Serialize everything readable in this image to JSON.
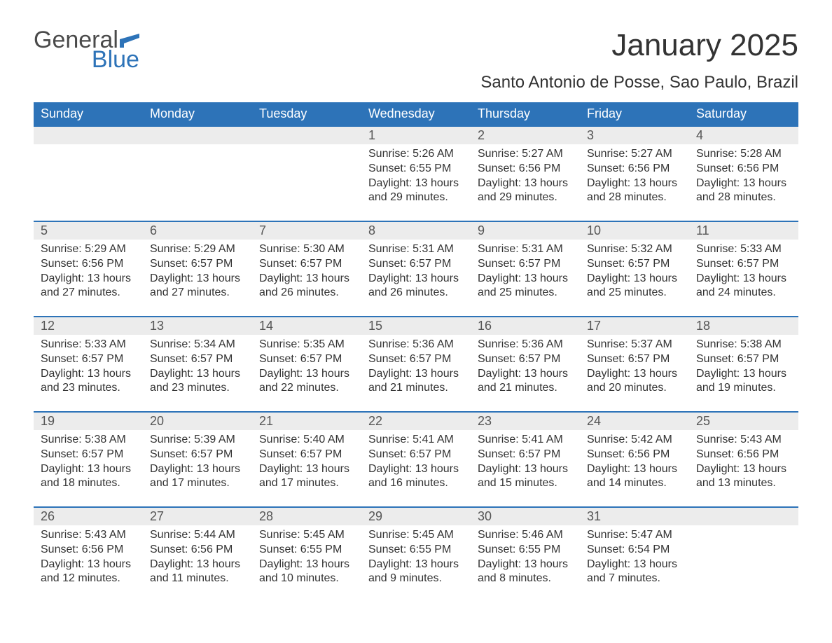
{
  "logo": {
    "text1": "General",
    "text2": "Blue",
    "color_general": "#4a4a4a",
    "color_blue": "#2d73b8",
    "flag_color": "#2d73b8"
  },
  "title": "January 2025",
  "location": "Santo Antonio de Posse, Sao Paulo, Brazil",
  "header_bg": "#2d73b8",
  "header_fg": "#ffffff",
  "daynum_bg": "#ececec",
  "rule_color": "#2d73b8",
  "text_color": "#333333",
  "days_of_week": [
    "Sunday",
    "Monday",
    "Tuesday",
    "Wednesday",
    "Thursday",
    "Friday",
    "Saturday"
  ],
  "weeks": [
    [
      null,
      null,
      null,
      {
        "n": "1",
        "sr": "Sunrise: 5:26 AM",
        "ss": "Sunset: 6:55 PM",
        "dl": "Daylight: 13 hours and 29 minutes."
      },
      {
        "n": "2",
        "sr": "Sunrise: 5:27 AM",
        "ss": "Sunset: 6:56 PM",
        "dl": "Daylight: 13 hours and 29 minutes."
      },
      {
        "n": "3",
        "sr": "Sunrise: 5:27 AM",
        "ss": "Sunset: 6:56 PM",
        "dl": "Daylight: 13 hours and 28 minutes."
      },
      {
        "n": "4",
        "sr": "Sunrise: 5:28 AM",
        "ss": "Sunset: 6:56 PM",
        "dl": "Daylight: 13 hours and 28 minutes."
      }
    ],
    [
      {
        "n": "5",
        "sr": "Sunrise: 5:29 AM",
        "ss": "Sunset: 6:56 PM",
        "dl": "Daylight: 13 hours and 27 minutes."
      },
      {
        "n": "6",
        "sr": "Sunrise: 5:29 AM",
        "ss": "Sunset: 6:57 PM",
        "dl": "Daylight: 13 hours and 27 minutes."
      },
      {
        "n": "7",
        "sr": "Sunrise: 5:30 AM",
        "ss": "Sunset: 6:57 PM",
        "dl": "Daylight: 13 hours and 26 minutes."
      },
      {
        "n": "8",
        "sr": "Sunrise: 5:31 AM",
        "ss": "Sunset: 6:57 PM",
        "dl": "Daylight: 13 hours and 26 minutes."
      },
      {
        "n": "9",
        "sr": "Sunrise: 5:31 AM",
        "ss": "Sunset: 6:57 PM",
        "dl": "Daylight: 13 hours and 25 minutes."
      },
      {
        "n": "10",
        "sr": "Sunrise: 5:32 AM",
        "ss": "Sunset: 6:57 PM",
        "dl": "Daylight: 13 hours and 25 minutes."
      },
      {
        "n": "11",
        "sr": "Sunrise: 5:33 AM",
        "ss": "Sunset: 6:57 PM",
        "dl": "Daylight: 13 hours and 24 minutes."
      }
    ],
    [
      {
        "n": "12",
        "sr": "Sunrise: 5:33 AM",
        "ss": "Sunset: 6:57 PM",
        "dl": "Daylight: 13 hours and 23 minutes."
      },
      {
        "n": "13",
        "sr": "Sunrise: 5:34 AM",
        "ss": "Sunset: 6:57 PM",
        "dl": "Daylight: 13 hours and 23 minutes."
      },
      {
        "n": "14",
        "sr": "Sunrise: 5:35 AM",
        "ss": "Sunset: 6:57 PM",
        "dl": "Daylight: 13 hours and 22 minutes."
      },
      {
        "n": "15",
        "sr": "Sunrise: 5:36 AM",
        "ss": "Sunset: 6:57 PM",
        "dl": "Daylight: 13 hours and 21 minutes."
      },
      {
        "n": "16",
        "sr": "Sunrise: 5:36 AM",
        "ss": "Sunset: 6:57 PM",
        "dl": "Daylight: 13 hours and 21 minutes."
      },
      {
        "n": "17",
        "sr": "Sunrise: 5:37 AM",
        "ss": "Sunset: 6:57 PM",
        "dl": "Daylight: 13 hours and 20 minutes."
      },
      {
        "n": "18",
        "sr": "Sunrise: 5:38 AM",
        "ss": "Sunset: 6:57 PM",
        "dl": "Daylight: 13 hours and 19 minutes."
      }
    ],
    [
      {
        "n": "19",
        "sr": "Sunrise: 5:38 AM",
        "ss": "Sunset: 6:57 PM",
        "dl": "Daylight: 13 hours and 18 minutes."
      },
      {
        "n": "20",
        "sr": "Sunrise: 5:39 AM",
        "ss": "Sunset: 6:57 PM",
        "dl": "Daylight: 13 hours and 17 minutes."
      },
      {
        "n": "21",
        "sr": "Sunrise: 5:40 AM",
        "ss": "Sunset: 6:57 PM",
        "dl": "Daylight: 13 hours and 17 minutes."
      },
      {
        "n": "22",
        "sr": "Sunrise: 5:41 AM",
        "ss": "Sunset: 6:57 PM",
        "dl": "Daylight: 13 hours and 16 minutes."
      },
      {
        "n": "23",
        "sr": "Sunrise: 5:41 AM",
        "ss": "Sunset: 6:57 PM",
        "dl": "Daylight: 13 hours and 15 minutes."
      },
      {
        "n": "24",
        "sr": "Sunrise: 5:42 AM",
        "ss": "Sunset: 6:56 PM",
        "dl": "Daylight: 13 hours and 14 minutes."
      },
      {
        "n": "25",
        "sr": "Sunrise: 5:43 AM",
        "ss": "Sunset: 6:56 PM",
        "dl": "Daylight: 13 hours and 13 minutes."
      }
    ],
    [
      {
        "n": "26",
        "sr": "Sunrise: 5:43 AM",
        "ss": "Sunset: 6:56 PM",
        "dl": "Daylight: 13 hours and 12 minutes."
      },
      {
        "n": "27",
        "sr": "Sunrise: 5:44 AM",
        "ss": "Sunset: 6:56 PM",
        "dl": "Daylight: 13 hours and 11 minutes."
      },
      {
        "n": "28",
        "sr": "Sunrise: 5:45 AM",
        "ss": "Sunset: 6:55 PM",
        "dl": "Daylight: 13 hours and 10 minutes."
      },
      {
        "n": "29",
        "sr": "Sunrise: 5:45 AM",
        "ss": "Sunset: 6:55 PM",
        "dl": "Daylight: 13 hours and 9 minutes."
      },
      {
        "n": "30",
        "sr": "Sunrise: 5:46 AM",
        "ss": "Sunset: 6:55 PM",
        "dl": "Daylight: 13 hours and 8 minutes."
      },
      {
        "n": "31",
        "sr": "Sunrise: 5:47 AM",
        "ss": "Sunset: 6:54 PM",
        "dl": "Daylight: 13 hours and 7 minutes."
      },
      null
    ]
  ]
}
